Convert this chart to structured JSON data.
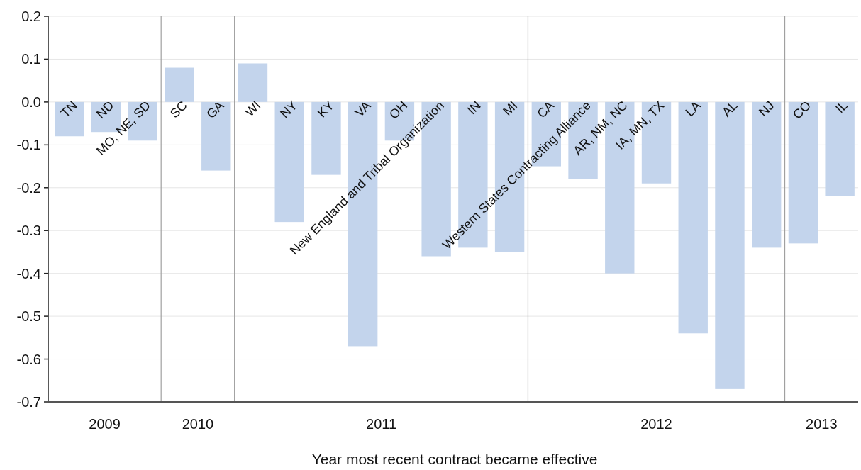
{
  "chart_data": {
    "type": "bar",
    "xlabel": "Year most recent contract became effective",
    "categories": [
      "TN",
      "ND",
      "MO, NE, SD",
      "SC",
      "GA",
      "WI",
      "NY",
      "KY",
      "VA",
      "OH",
      "New England and Tribal Organization",
      "IN",
      "MI",
      "CA",
      "Western States Contracting Alliance",
      "AR, NM, NC",
      "IA, MN, TX",
      "LA",
      "AL",
      "NJ",
      "CO",
      "IL"
    ],
    "values": [
      -0.08,
      -0.07,
      -0.09,
      0.08,
      -0.16,
      0.09,
      -0.28,
      -0.17,
      -0.57,
      -0.09,
      -0.36,
      -0.34,
      -0.35,
      -0.15,
      -0.18,
      -0.4,
      -0.19,
      -0.54,
      -0.67,
      -0.34,
      -0.33,
      -0.22
    ],
    "color": "#c3d4ec",
    "ylim": [
      -0.7,
      0.2
    ],
    "yticks": [
      0.2,
      0.1,
      {
        "value": 0,
        "label": "0.0"
      },
      -0.1,
      -0.2,
      -0.3,
      -0.4,
      -0.5,
      -0.6,
      -0.7
    ],
    "grid": "y",
    "annotations": [
      "2009",
      "2010",
      "2011",
      "2012",
      "2013"
    ]
  }
}
